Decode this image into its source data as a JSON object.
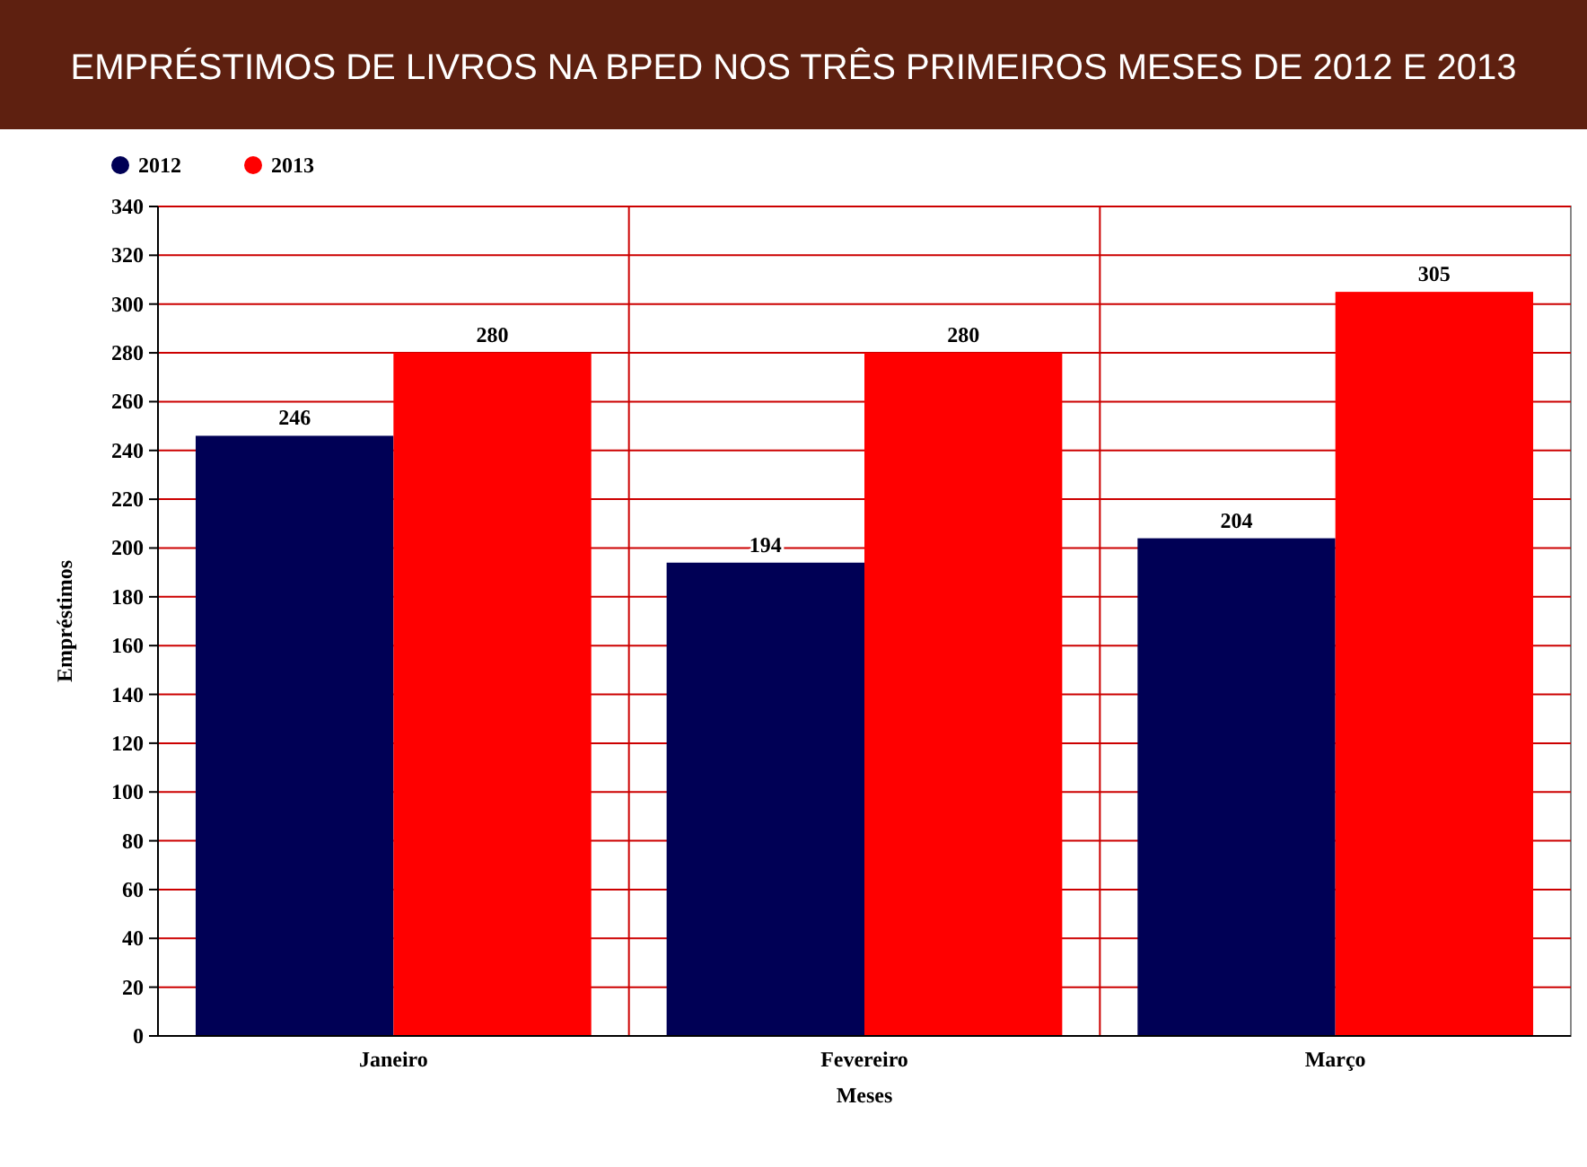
{
  "chart_data": {
    "type": "bar",
    "title": "EMPRÉSTIMOS DE LIVROS NA BPED NOS TRÊS PRIMEIROS MESES DE 2012 E 2013",
    "xlabel": "Meses",
    "ylabel": "Empréstimos",
    "categories": [
      "Janeiro",
      "Fevereiro",
      "Março"
    ],
    "series": [
      {
        "name": "2012",
        "color": "#000055",
        "values": [
          246,
          194,
          204
        ]
      },
      {
        "name": "2013",
        "color": "#ff0000",
        "values": [
          280,
          280,
          305
        ]
      }
    ],
    "ylim": [
      0,
      340
    ],
    "yticks": [
      0,
      20,
      40,
      60,
      80,
      100,
      120,
      140,
      160,
      180,
      200,
      220,
      240,
      260,
      280,
      300,
      320,
      340
    ],
    "grid": true,
    "legend": "top left",
    "data_labels": true
  }
}
